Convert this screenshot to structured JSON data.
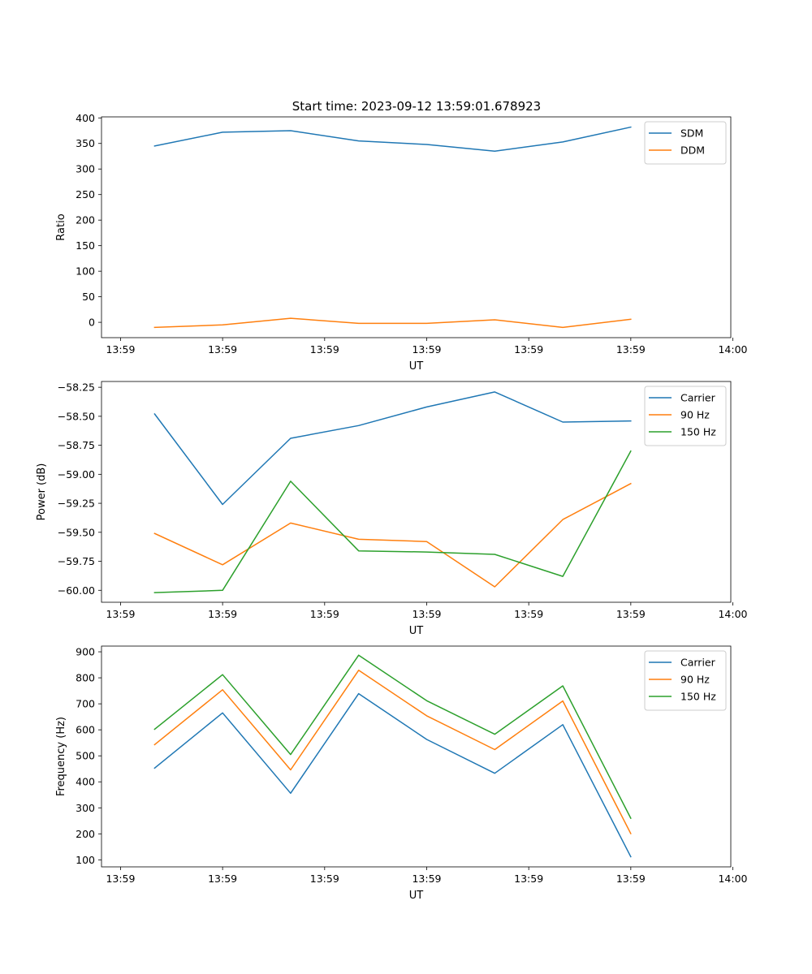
{
  "title": "Start time: 2023-09-12 13:59:01.678923",
  "colors": {
    "c1": "#1f77b4",
    "c2": "#ff7f0e",
    "c3": "#2ca02c",
    "axis": "#000000"
  },
  "x_tick_labels": [
    "13:59",
    "13:59",
    "13:59",
    "13:59",
    "13:59",
    "13:59",
    "14:00"
  ],
  "chart_data": [
    {
      "type": "line",
      "xlabel": "UT",
      "ylabel": "Ratio",
      "xlim": [
        -0.78,
        8.47
      ],
      "x_ticks": [
        -0.5,
        1.0,
        2.5,
        4.0,
        5.5,
        7.0,
        8.5
      ],
      "ylim": [
        -30,
        402
      ],
      "y_ticks": [
        0,
        50,
        100,
        150,
        200,
        250,
        300,
        350,
        400
      ],
      "y_tick_labels": [
        "0",
        "50",
        "100",
        "150",
        "200",
        "250",
        "300",
        "350",
        "400"
      ],
      "x": [
        0,
        1,
        2,
        3,
        4,
        5,
        6,
        7
      ],
      "legend_position": "upper-right",
      "series": [
        {
          "name": "SDM",
          "color": "#1f77b4",
          "values": [
            345,
            372,
            375,
            355,
            348,
            335,
            353,
            382
          ]
        },
        {
          "name": "DDM",
          "color": "#ff7f0e",
          "values": [
            -10,
            -5,
            8,
            -2,
            -2,
            5,
            -10,
            6
          ]
        }
      ]
    },
    {
      "type": "line",
      "xlabel": "UT",
      "ylabel": "Power (dB)",
      "xlim": [
        -0.78,
        8.47
      ],
      "x_ticks": [
        -0.5,
        1.0,
        2.5,
        4.0,
        5.5,
        7.0,
        8.5
      ],
      "ylim": [
        -60.103,
        -58.2
      ],
      "y_ticks": [
        -60.0,
        -59.75,
        -59.5,
        -59.25,
        -59.0,
        -58.75,
        -58.5,
        -58.25
      ],
      "y_tick_labels": [
        "−60.00",
        "−59.75",
        "−59.50",
        "−59.25",
        "−59.00",
        "−58.75",
        "−58.50",
        "−58.25"
      ],
      "x": [
        0,
        1,
        2,
        3,
        4,
        5,
        6,
        7
      ],
      "legend_position": "upper-right",
      "series": [
        {
          "name": "Carrier",
          "color": "#1f77b4",
          "values": [
            -58.48,
            -59.26,
            -58.69,
            -58.58,
            -58.42,
            -58.29,
            -58.55,
            -58.54
          ]
        },
        {
          "name": "90 Hz",
          "color": "#ff7f0e",
          "values": [
            -59.51,
            -59.78,
            -59.42,
            -59.56,
            -59.58,
            -59.97,
            -59.39,
            -59.08
          ]
        },
        {
          "name": "150 Hz",
          "color": "#2ca02c",
          "values": [
            -60.02,
            -60.0,
            -59.06,
            -59.66,
            -59.67,
            -59.69,
            -59.88,
            -58.8
          ]
        }
      ]
    },
    {
      "type": "line",
      "xlabel": "UT",
      "ylabel": "Frequency (Hz)",
      "xlim": [
        -0.78,
        8.47
      ],
      "x_ticks": [
        -0.5,
        1.0,
        2.5,
        4.0,
        5.5,
        7.0,
        8.5
      ],
      "ylim": [
        73,
        922
      ],
      "y_ticks": [
        100,
        200,
        300,
        400,
        500,
        600,
        700,
        800,
        900
      ],
      "y_tick_labels": [
        "100",
        "200",
        "300",
        "400",
        "500",
        "600",
        "700",
        "800",
        "900"
      ],
      "x": [
        0,
        1,
        2,
        3,
        4,
        5,
        6,
        7
      ],
      "legend_position": "upper-right",
      "series": [
        {
          "name": "Carrier",
          "color": "#1f77b4",
          "values": [
            453,
            665,
            356,
            739,
            563,
            433,
            620,
            112
          ]
        },
        {
          "name": "90 Hz",
          "color": "#ff7f0e",
          "values": [
            543,
            754,
            446,
            829,
            654,
            524,
            711,
            201
          ]
        },
        {
          "name": "150 Hz",
          "color": "#2ca02c",
          "values": [
            602,
            812,
            505,
            887,
            712,
            583,
            769,
            260
          ]
        }
      ]
    }
  ]
}
